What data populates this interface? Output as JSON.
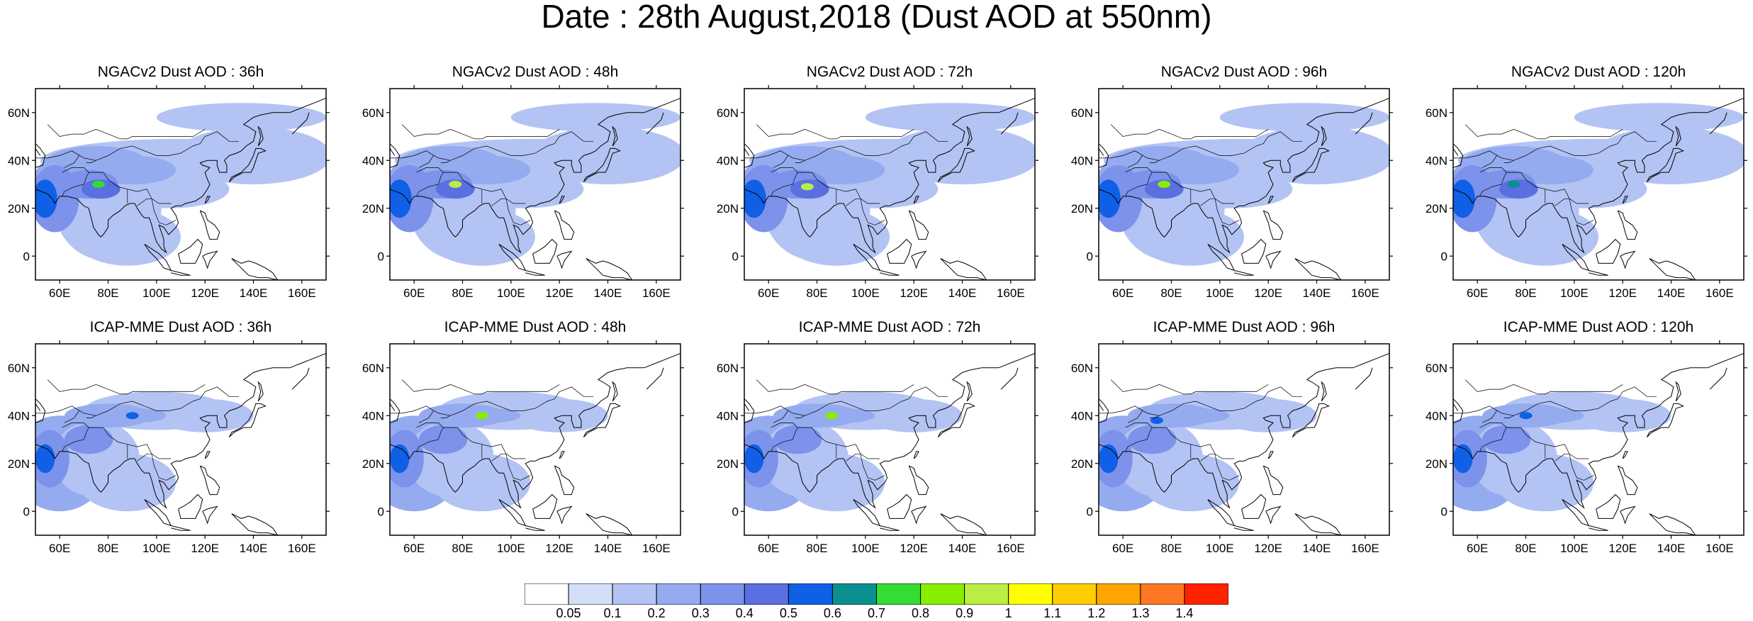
{
  "title": "Date : 28th August,2018 (Dust AOD at 550nm)",
  "map_axes": {
    "lat_ticks": [
      "60N",
      "40N",
      "20N",
      "0"
    ],
    "lon_ticks": [
      "60E",
      "80E",
      "100E",
      "120E",
      "140E",
      "160E"
    ],
    "lat_values": [
      60,
      40,
      20,
      0
    ],
    "lon_values": [
      60,
      80,
      100,
      120,
      140,
      160
    ],
    "lon_range": [
      50,
      170
    ],
    "lat_range": [
      -10,
      70
    ]
  },
  "panels": [
    {
      "title": "NGACv2 Dust AOD : 36h",
      "model": "NGACv2",
      "lead": "36h",
      "hotspot_level": 0.7
    },
    {
      "title": "NGACv2 Dust AOD : 48h",
      "model": "NGACv2",
      "lead": "48h",
      "hotspot_level": 0.9
    },
    {
      "title": "NGACv2 Dust AOD : 72h",
      "model": "NGACv2",
      "lead": "72h",
      "hotspot_level": 0.9
    },
    {
      "title": "NGACv2 Dust AOD : 96h",
      "model": "NGACv2",
      "lead": "96h",
      "hotspot_level": 0.8
    },
    {
      "title": "NGACv2 Dust AOD : 120h",
      "model": "NGACv2",
      "lead": "120h",
      "hotspot_level": 0.6
    },
    {
      "title": "ICAP-MME Dust AOD : 36h",
      "model": "ICAP-MME",
      "lead": "36h",
      "hotspot_level": 0.5
    },
    {
      "title": "ICAP-MME Dust AOD : 48h",
      "model": "ICAP-MME",
      "lead": "48h",
      "hotspot_level": 0.8
    },
    {
      "title": "ICAP-MME Dust AOD : 72h",
      "model": "ICAP-MME",
      "lead": "72h",
      "hotspot_level": 0.8
    },
    {
      "title": "ICAP-MME Dust AOD : 96h",
      "model": "ICAP-MME",
      "lead": "96h",
      "hotspot_level": 0.5
    },
    {
      "title": "ICAP-MME Dust AOD : 120h",
      "model": "ICAP-MME",
      "lead": "120h",
      "hotspot_level": 0.5
    }
  ],
  "colorbar": {
    "labels": [
      "0.05",
      "0.1",
      "0.2",
      "0.3",
      "0.4",
      "0.5",
      "0.6",
      "0.7",
      "0.8",
      "0.9",
      "1",
      "1.1",
      "1.2",
      "1.3",
      "1.4"
    ],
    "colors": [
      "#ffffff",
      "#d4def8",
      "#b3c3f3",
      "#95abf0",
      "#7c92eb",
      "#5a6fe0",
      "#0f60e6",
      "#0a9090",
      "#33dd33",
      "#88ee00",
      "#bbee44",
      "#ffff00",
      "#ffcc00",
      "#ffa500",
      "#ff7722",
      "#ff2200"
    ]
  }
}
